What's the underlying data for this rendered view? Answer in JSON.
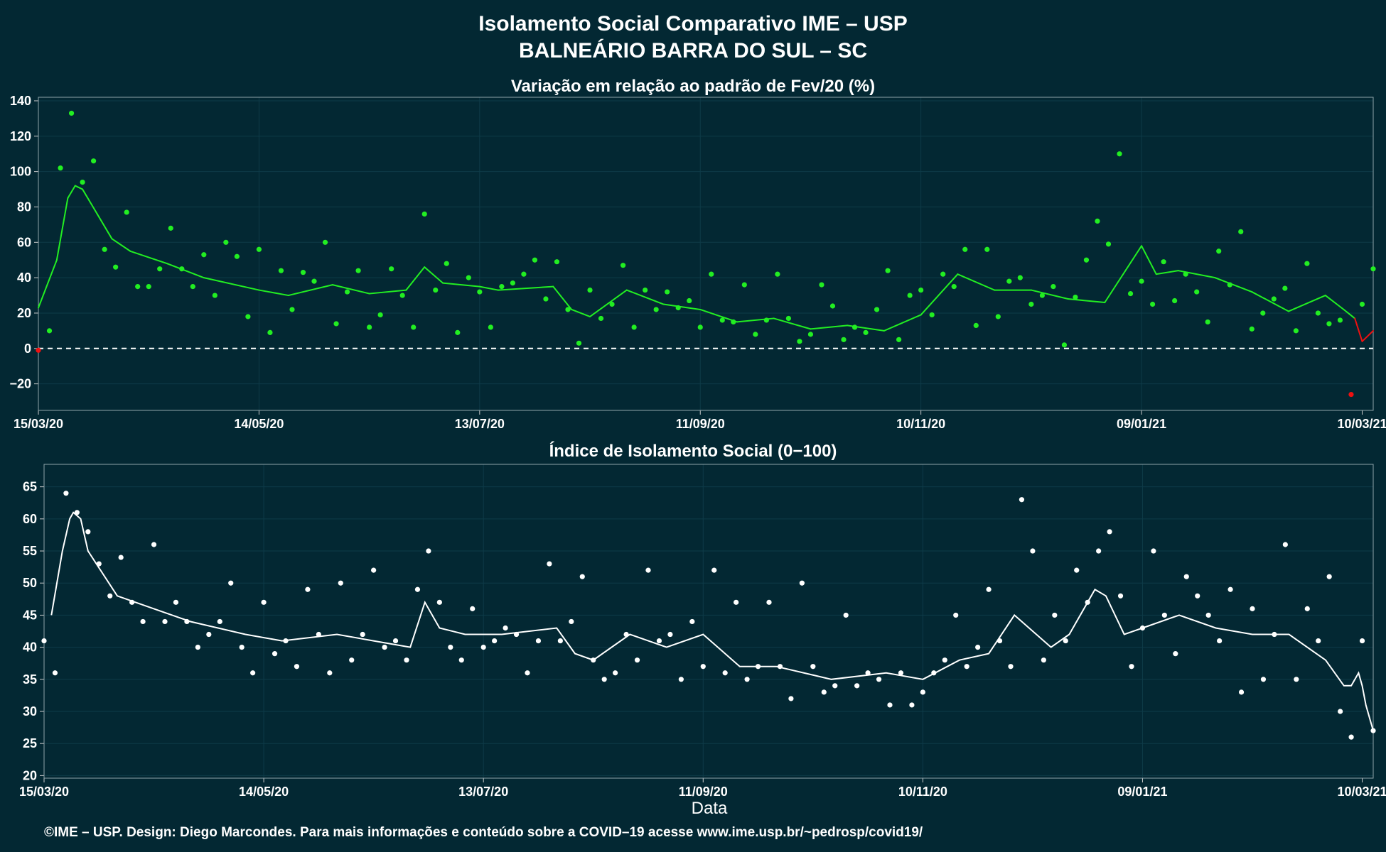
{
  "figure": {
    "title_line1": "Isolamento Social Comparativo IME – USP",
    "title_line2": "BALNEÁRIO BARRA DO SUL – SC",
    "x_axis_label": "Data",
    "footer": "©IME – USP. Design: Diego Marcondes. Para mais informações e conteúdo sobre a COVID–19 acesse www.ime.usp.br/~pedrosp/covid19/"
  },
  "colors": {
    "background": "#032833",
    "positive_points": "#22ee22",
    "negative_points": "#ee1111",
    "index_points": "#ffffff",
    "axis_text": "#ffffff",
    "gridline": "#0e3b48"
  },
  "chart_data": [
    {
      "type": "scatter",
      "title": "Variação em relação ao padrão de Fev/20 (%)",
      "xlabel": "",
      "ylabel": "",
      "x_tick_labels": [
        "15/03/20",
        "14/05/20",
        "13/07/20",
        "11/09/20",
        "10/11/20",
        "09/01/21",
        "10/03/21"
      ],
      "y_ticks": [
        -20,
        0,
        20,
        40,
        60,
        80,
        100,
        120,
        140
      ],
      "ylim": [
        -35,
        142
      ],
      "x_range_days": [
        0,
        363
      ],
      "grid": true,
      "reference_line": {
        "y": 0,
        "style": "dashed"
      },
      "series": [
        {
          "kind": "points",
          "sampling": "day index from 15/03/20, sampled every 3rd day",
          "x": [
            0,
            3,
            6,
            9,
            12,
            15,
            18,
            21,
            24,
            27,
            30,
            33,
            36,
            39,
            42,
            45,
            48,
            51,
            54,
            57,
            60,
            63,
            66,
            69,
            72,
            75,
            78,
            81,
            84,
            87,
            90,
            93,
            96,
            99,
            102,
            105,
            108,
            111,
            114,
            117,
            120,
            123,
            126,
            129,
            132,
            135,
            138,
            141,
            144,
            147,
            150,
            153,
            156,
            159,
            162,
            165,
            168,
            171,
            174,
            177,
            180,
            183,
            186,
            189,
            192,
            195,
            198,
            201,
            204,
            207,
            210,
            213,
            216,
            219,
            222,
            225,
            228,
            231,
            234,
            237,
            240,
            243,
            246,
            249,
            252,
            255,
            258,
            261,
            264,
            267,
            270,
            273,
            276,
            279,
            282,
            285,
            288,
            291,
            294,
            297,
            300,
            303,
            306,
            309,
            312,
            315,
            318,
            321,
            324,
            327,
            330,
            333,
            336,
            339,
            342,
            345,
            348,
            351,
            354,
            357,
            360,
            363
          ],
          "y": [
            -1,
            10,
            102,
            133,
            94,
            106,
            56,
            46,
            77,
            35,
            35,
            45,
            68,
            45,
            35,
            53,
            30,
            60,
            52,
            18,
            56,
            9,
            44,
            22,
            43,
            38,
            60,
            14,
            32,
            44,
            12,
            19,
            45,
            30,
            12,
            76,
            33,
            48,
            9,
            40,
            32,
            12,
            35,
            37,
            42,
            50,
            28,
            49,
            22,
            3,
            33,
            17,
            25,
            47,
            12,
            33,
            22,
            32,
            23,
            27,
            12,
            42,
            16,
            15,
            36,
            8,
            16,
            42,
            17,
            4,
            8,
            36,
            24,
            5,
            12,
            9,
            22,
            44,
            5,
            30,
            33,
            19,
            42,
            35,
            56,
            13,
            56,
            18,
            38,
            40,
            25,
            30,
            35,
            2,
            29,
            50,
            72,
            59,
            110,
            31,
            38,
            25,
            49,
            27,
            42,
            32,
            15,
            55,
            36,
            66,
            11,
            20,
            28,
            34,
            10,
            48,
            20,
            14,
            16,
            -26,
            25,
            45
          ]
        },
        {
          "kind": "moving-average line",
          "x": [
            0,
            5,
            8,
            10,
            12,
            16,
            20,
            25,
            35,
            45,
            60,
            68,
            80,
            90,
            100,
            105,
            110,
            120,
            125,
            140,
            145,
            150,
            160,
            170,
            180,
            190,
            200,
            210,
            220,
            230,
            240,
            250,
            260,
            270,
            280,
            290,
            300,
            304,
            310,
            320,
            330,
            340,
            350,
            355,
            358,
            360,
            363
          ],
          "y": [
            23,
            50,
            85,
            92,
            90,
            76,
            62,
            55,
            48,
            40,
            33,
            30,
            36,
            31,
            33,
            46,
            37,
            35,
            33,
            35,
            22,
            18,
            33,
            25,
            22,
            15,
            17,
            11,
            13,
            10,
            19,
            42,
            33,
            33,
            28,
            26,
            58,
            42,
            44,
            40,
            32,
            21,
            30,
            22,
            17,
            4,
            10
          ]
        }
      ]
    },
    {
      "type": "scatter",
      "title": "Índice de Isolamento Social (0−100)",
      "xlabel": "Data",
      "ylabel": "",
      "x_tick_labels": [
        "15/03/20",
        "14/05/20",
        "13/07/20",
        "11/09/20",
        "10/11/20",
        "09/01/21",
        "10/03/21"
      ],
      "y_ticks": [
        20,
        25,
        30,
        35,
        40,
        45,
        50,
        55,
        60,
        65
      ],
      "ylim": [
        19.6,
        68.5
      ],
      "x_range_days": [
        0,
        363
      ],
      "grid": true,
      "series": [
        {
          "kind": "points",
          "sampling": "day index from 15/03/20, sampled every 3rd day",
          "x": [
            0,
            3,
            6,
            9,
            12,
            15,
            18,
            21,
            24,
            27,
            30,
            33,
            36,
            39,
            42,
            45,
            48,
            51,
            54,
            57,
            60,
            63,
            66,
            69,
            72,
            75,
            78,
            81,
            84,
            87,
            90,
            93,
            96,
            99,
            102,
            105,
            108,
            111,
            114,
            117,
            120,
            123,
            126,
            129,
            132,
            135,
            138,
            141,
            144,
            147,
            150,
            153,
            156,
            159,
            162,
            165,
            168,
            171,
            174,
            177,
            180,
            183,
            186,
            189,
            192,
            195,
            198,
            201,
            204,
            207,
            210,
            213,
            216,
            219,
            222,
            225,
            228,
            231,
            234,
            237,
            240,
            243,
            246,
            249,
            252,
            255,
            258,
            261,
            264,
            267,
            270,
            273,
            276,
            279,
            282,
            285,
            288,
            291,
            294,
            297,
            300,
            303,
            306,
            309,
            312,
            315,
            318,
            321,
            324,
            327,
            330,
            333,
            336,
            339,
            342,
            345,
            348,
            351,
            354,
            357,
            360,
            363
          ],
          "y": [
            41,
            36,
            64,
            61,
            58,
            53,
            48,
            54,
            47,
            44,
            56,
            44,
            47,
            44,
            40,
            42,
            44,
            50,
            40,
            36,
            47,
            39,
            41,
            37,
            49,
            42,
            36,
            50,
            38,
            42,
            52,
            40,
            41,
            38,
            49,
            55,
            47,
            40,
            38,
            46,
            40,
            41,
            43,
            42,
            36,
            41,
            53,
            41,
            44,
            51,
            38,
            35,
            36,
            42,
            38,
            52,
            41,
            42,
            35,
            44,
            37,
            52,
            36,
            47,
            35,
            37,
            47,
            37,
            32,
            50,
            37,
            33,
            34,
            45,
            34,
            36,
            35,
            31,
            36,
            31,
            33,
            36,
            38,
            45,
            37,
            40,
            49,
            41,
            37,
            63,
            55,
            38,
            45,
            41,
            52,
            47,
            55,
            58,
            48,
            37,
            43,
            55,
            45,
            39,
            51,
            48,
            45,
            41,
            49,
            33,
            46,
            35,
            42,
            56,
            35,
            46,
            41,
            51,
            30,
            26,
            41,
            27
          ]
        },
        {
          "kind": "moving-average line",
          "x": [
            2,
            5,
            7,
            8,
            10,
            12,
            20,
            30,
            40,
            55,
            65,
            80,
            90,
            100,
            104,
            108,
            115,
            125,
            140,
            145,
            150,
            160,
            170,
            180,
            190,
            200,
            215,
            230,
            240,
            250,
            258,
            265,
            275,
            280,
            287,
            290,
            295,
            300,
            310,
            320,
            330,
            340,
            350,
            355,
            357,
            359,
            360,
            361,
            363
          ],
          "y": [
            45,
            55,
            60,
            61,
            60,
            55,
            48,
            46,
            44,
            42,
            41,
            42,
            41,
            40,
            47,
            43,
            42,
            42,
            43,
            39,
            38,
            42,
            40,
            42,
            37,
            37,
            35,
            36,
            35,
            38,
            39,
            45,
            40,
            42,
            49,
            48,
            42,
            43,
            45,
            43,
            42,
            42,
            38,
            34,
            34,
            36,
            34,
            31,
            27
          ]
        }
      ]
    }
  ]
}
